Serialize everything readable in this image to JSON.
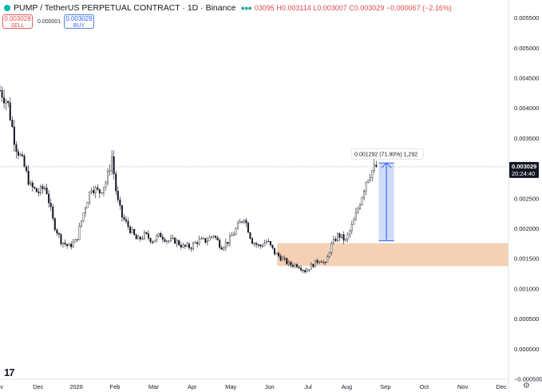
{
  "header": {
    "symbol": "PUMP / TetherUS PERPETUAL CONTRACT · 1D · Binance",
    "ohlc": "03095 H0.003114 L0.003007 C0.003029 −0.000067 (−2.16%)"
  },
  "trade": {
    "sell_price": "0.003028",
    "sell_label": "SELL",
    "spread": "0.000001",
    "buy_price": "0.003029",
    "buy_label": "BUY"
  },
  "price_axis": {
    "ticks": [
      "0.005500",
      "0.005000",
      "0.004500",
      "0.004000",
      "0.003500",
      "0.002500",
      "0.002000",
      "0.001500",
      "0.001000",
      "0.000500",
      "0.000000",
      "−0.000500"
    ],
    "current_price": "0.003029",
    "countdown": "20:24:40"
  },
  "time_axis": {
    "ticks": [
      "ov",
      "Dec",
      "2026",
      "Feb",
      "Mar",
      "Apr",
      "May",
      "Jun",
      "Jul",
      "Aug",
      "Sep",
      "Oct",
      "Nov",
      "Dec"
    ]
  },
  "measure": {
    "label": "0.001292 (71.90%) 1,292"
  },
  "colors": {
    "candle": "#131722",
    "zone_fill": "#f4d0b4",
    "measure_fill": "#c9d8f7",
    "measure_stroke": "#2962ff",
    "price_badge": "#131722"
  },
  "chart_data": {
    "type": "candlestick",
    "ylim": [
      -0.0005,
      0.0058
    ],
    "x_range": [
      0,
      100
    ],
    "x_ticks": [
      0,
      7.5,
      15,
      22.6,
      30.2,
      37.8,
      45.4,
      53.0,
      60.6,
      68.2,
      75.8,
      83.4,
      91.0,
      98.6
    ],
    "close_path": [
      [
        0,
        0.0043
      ],
      [
        1.5,
        0.0041
      ],
      [
        3,
        0.0034
      ],
      [
        4.5,
        0.0031
      ],
      [
        6,
        0.0027
      ],
      [
        7.5,
        0.0026
      ],
      [
        9,
        0.0027
      ],
      [
        10.5,
        0.0021
      ],
      [
        12,
        0.0018
      ],
      [
        13.5,
        0.0017
      ],
      [
        15,
        0.0018
      ],
      [
        16.5,
        0.0023
      ],
      [
        18,
        0.0027
      ],
      [
        19.5,
        0.0026
      ],
      [
        21,
        0.0028
      ],
      [
        22,
        0.0032
      ],
      [
        23,
        0.0025
      ],
      [
        24,
        0.0022
      ],
      [
        25.5,
        0.002
      ],
      [
        27,
        0.0018
      ],
      [
        28.5,
        0.0019
      ],
      [
        30,
        0.0018
      ],
      [
        31.5,
        0.0019
      ],
      [
        33,
        0.0018
      ],
      [
        34.5,
        0.0018
      ],
      [
        36,
        0.0017
      ],
      [
        37.5,
        0.0017
      ],
      [
        39,
        0.0018
      ],
      [
        40.5,
        0.0018
      ],
      [
        42,
        0.0019
      ],
      [
        43.5,
        0.0017
      ],
      [
        45,
        0.0018
      ],
      [
        46.5,
        0.002
      ],
      [
        48,
        0.0022
      ],
      [
        49.5,
        0.0018
      ],
      [
        51,
        0.0017
      ],
      [
        52.5,
        0.0018
      ],
      [
        54,
        0.0016
      ],
      [
        55.5,
        0.0015
      ],
      [
        57,
        0.0014
      ],
      [
        58.5,
        0.0014
      ],
      [
        60,
        0.0013
      ],
      [
        61.5,
        0.0014
      ],
      [
        63,
        0.0015
      ],
      [
        64,
        0.0014
      ],
      [
        65,
        0.0017
      ],
      [
        66.5,
        0.0019
      ],
      [
        68,
        0.0018
      ],
      [
        69.5,
        0.0021
      ],
      [
        71,
        0.0025
      ],
      [
        72,
        0.0028
      ],
      [
        73,
        0.00295
      ],
      [
        74,
        0.00303
      ]
    ],
    "zone": {
      "x": [
        54.5,
        100
      ],
      "y": [
        0.00138,
        0.00176
      ]
    },
    "measure": {
      "x": [
        74.5,
        77.5
      ],
      "y": [
        0.0018,
        0.003092
      ]
    },
    "current_price": 0.003029
  }
}
